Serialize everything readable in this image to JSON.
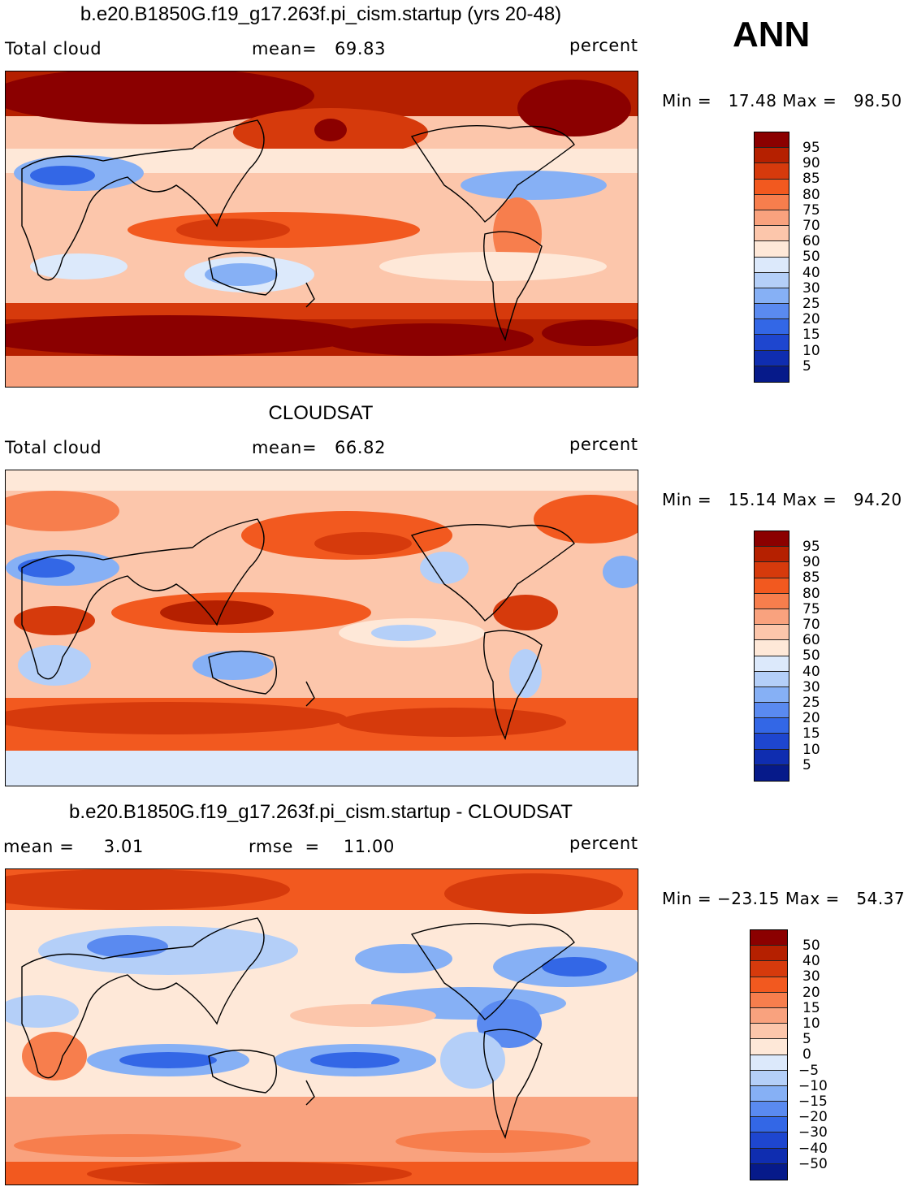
{
  "season": "ANN",
  "colors": {
    "warm": [
      "#8b0000",
      "#b52000",
      "#d63a0c",
      "#f2591f",
      "#f77e4d",
      "#f9a27e",
      "#fcc6ab",
      "#fee8d8"
    ],
    "cool": [
      "#dce9fb",
      "#b4cff8",
      "#86b0f5",
      "#5a8af0",
      "#3367e6",
      "#1e46cf",
      "#0f2db0",
      "#061a8a"
    ]
  },
  "panels": [
    {
      "title": "b.e20.B1850G.f19_g17.263f.pi_cism.startup (yrs 20-48)",
      "left_label": "Total cloud",
      "mid_label": "mean=   69.83",
      "right_label": "percent",
      "minmax": "Min =   17.48 Max =   98.50",
      "map_icon": "world-map-model-cloud",
      "colorbar": [
        "95",
        "90",
        "85",
        "80",
        "75",
        "70",
        "60",
        "50",
        "40",
        "30",
        "25",
        "20",
        "15",
        "10",
        "5"
      ]
    },
    {
      "title": "CLOUDSAT",
      "left_label": "Total cloud",
      "mid_label": "mean=   66.82",
      "right_label": "percent",
      "minmax": "Min =   15.14 Max =   94.20",
      "map_icon": "world-map-obs-cloud",
      "colorbar": [
        "95",
        "90",
        "85",
        "80",
        "75",
        "70",
        "60",
        "50",
        "40",
        "30",
        "25",
        "20",
        "15",
        "10",
        "5"
      ]
    },
    {
      "title": "b.e20.B1850G.f19_g17.263f.pi_cism.startup - CLOUDSAT",
      "left_label": "mean =     3.01",
      "mid_label": "rmse  =    11.00",
      "right_label": "percent",
      "minmax": "Min = −23.15 Max =   54.37",
      "map_icon": "world-map-difference",
      "colorbar": [
        "50",
        "40",
        "30",
        "20",
        "15",
        "10",
        "5",
        "0",
        "−5",
        "−10",
        "−15",
        "−20",
        "−30",
        "−40",
        "−50"
      ]
    }
  ],
  "chart_data": [
    {
      "type": "heatmap",
      "title": "b.e20.B1850G.f19_g17.263f.pi_cism.startup (yrs 20-48)",
      "variable": "Total cloud",
      "units": "percent",
      "mean": 69.83,
      "min": 17.48,
      "max": 98.5,
      "levels": [
        5,
        10,
        15,
        20,
        25,
        30,
        40,
        50,
        60,
        70,
        75,
        80,
        85,
        90,
        95
      ]
    },
    {
      "type": "heatmap",
      "title": "CLOUDSAT",
      "variable": "Total cloud",
      "units": "percent",
      "mean": 66.82,
      "min": 15.14,
      "max": 94.2,
      "levels": [
        5,
        10,
        15,
        20,
        25,
        30,
        40,
        50,
        60,
        70,
        75,
        80,
        85,
        90,
        95
      ]
    },
    {
      "type": "heatmap",
      "title": "b.e20.B1850G.f19_g17.263f.pi_cism.startup - CLOUDSAT",
      "units": "percent",
      "mean": 3.01,
      "rmse": 11.0,
      "min": -23.15,
      "max": 54.37,
      "levels": [
        -50,
        -40,
        -30,
        -20,
        -15,
        -10,
        -5,
        0,
        5,
        10,
        15,
        20,
        30,
        40,
        50
      ]
    }
  ]
}
